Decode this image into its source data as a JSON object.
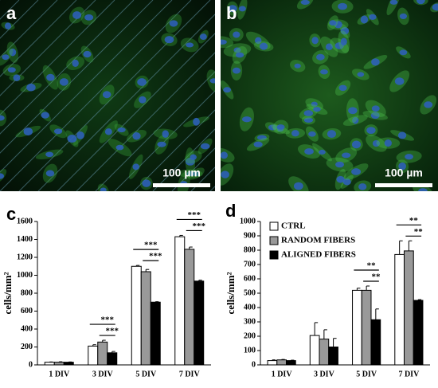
{
  "images": [
    {
      "label": "a",
      "scale_bar": "100 µm"
    },
    {
      "label": "b",
      "scale_bar": "100 µm"
    }
  ],
  "chart_data": [
    {
      "type": "bar",
      "panel_label": "c",
      "y_label": "cells/mm²",
      "categories": [
        "1 DIV",
        "3 DIV",
        "5 DIV",
        "7 DIV"
      ],
      "series": [
        {
          "color": "#ffffff",
          "values": [
            30,
            210,
            1100,
            1430
          ],
          "errors": [
            3,
            15,
            10,
            15
          ]
        },
        {
          "color": "#999999",
          "values": [
            30,
            255,
            1040,
            1290
          ],
          "errors": [
            5,
            20,
            25,
            25
          ]
        },
        {
          "color": "#000000",
          "values": [
            30,
            135,
            700,
            935
          ],
          "errors": [
            3,
            15,
            5,
            10
          ]
        }
      ],
      "significance": [
        [],
        [
          "***",
          "***"
        ],
        [
          "***",
          "***"
        ],
        [
          "***",
          "***"
        ]
      ],
      "ylim": [
        0,
        1600
      ],
      "yticks": [
        0,
        200,
        400,
        600,
        800,
        1000,
        1200,
        1400,
        1600
      ],
      "legend": false
    },
    {
      "type": "bar",
      "panel_label": "d",
      "y_label": "cells/mm²",
      "categories": [
        "1 DIV",
        "3 DIV",
        "5 DIV",
        "7 DIV"
      ],
      "series": [
        {
          "name": "CTRL",
          "color": "#ffffff",
          "values": [
            30,
            205,
            520,
            770
          ],
          "errors": [
            5,
            90,
            15,
            95
          ]
        },
        {
          "name": "RANDOM FIBERS",
          "color": "#999999",
          "values": [
            35,
            180,
            520,
            795
          ],
          "errors": [
            3,
            65,
            30,
            70
          ]
        },
        {
          "name": "ALIGNED FIBERS",
          "color": "#000000",
          "values": [
            30,
            125,
            315,
            450
          ],
          "errors": [
            3,
            60,
            75,
            5
          ]
        }
      ],
      "significance": [
        [],
        [],
        [
          "**",
          "**"
        ],
        [
          "**",
          "**"
        ]
      ],
      "ylim": [
        0,
        1000
      ],
      "yticks": [
        0,
        100,
        200,
        300,
        400,
        500,
        600,
        700,
        800,
        900,
        1000
      ],
      "legend": true,
      "legend_position": "upper-left"
    }
  ]
}
